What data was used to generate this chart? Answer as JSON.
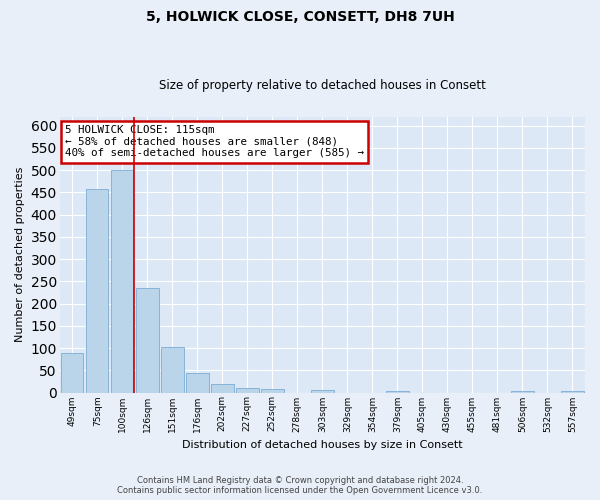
{
  "title": "5, HOLWICK CLOSE, CONSETT, DH8 7UH",
  "subtitle": "Size of property relative to detached houses in Consett",
  "xlabel": "Distribution of detached houses by size in Consett",
  "ylabel": "Number of detached properties",
  "categories": [
    "49sqm",
    "75sqm",
    "100sqm",
    "126sqm",
    "151sqm",
    "176sqm",
    "202sqm",
    "227sqm",
    "252sqm",
    "278sqm",
    "303sqm",
    "329sqm",
    "354sqm",
    "379sqm",
    "405sqm",
    "430sqm",
    "455sqm",
    "481sqm",
    "506sqm",
    "532sqm",
    "557sqm"
  ],
  "values": [
    88,
    458,
    500,
    235,
    103,
    45,
    20,
    11,
    7,
    0,
    5,
    0,
    0,
    4,
    0,
    0,
    0,
    0,
    3,
    0,
    3
  ],
  "bar_color": "#bad4ea",
  "bar_edgecolor": "#7aadd4",
  "annotation_text": "5 HOLWICK CLOSE: 115sqm\n← 58% of detached houses are smaller (848)\n40% of semi-detached houses are larger (585) →",
  "annotation_box_color": "#cc0000",
  "ylim": [
    0,
    620
  ],
  "yticks": [
    0,
    50,
    100,
    150,
    200,
    250,
    300,
    350,
    400,
    450,
    500,
    550,
    600
  ],
  "fig_background": "#e8eff8",
  "plot_background": "#dce8f5",
  "grid_color": "#ffffff",
  "footer_line1": "Contains HM Land Registry data © Crown copyright and database right 2024.",
  "footer_line2": "Contains public sector information licensed under the Open Government Licence v3.0."
}
